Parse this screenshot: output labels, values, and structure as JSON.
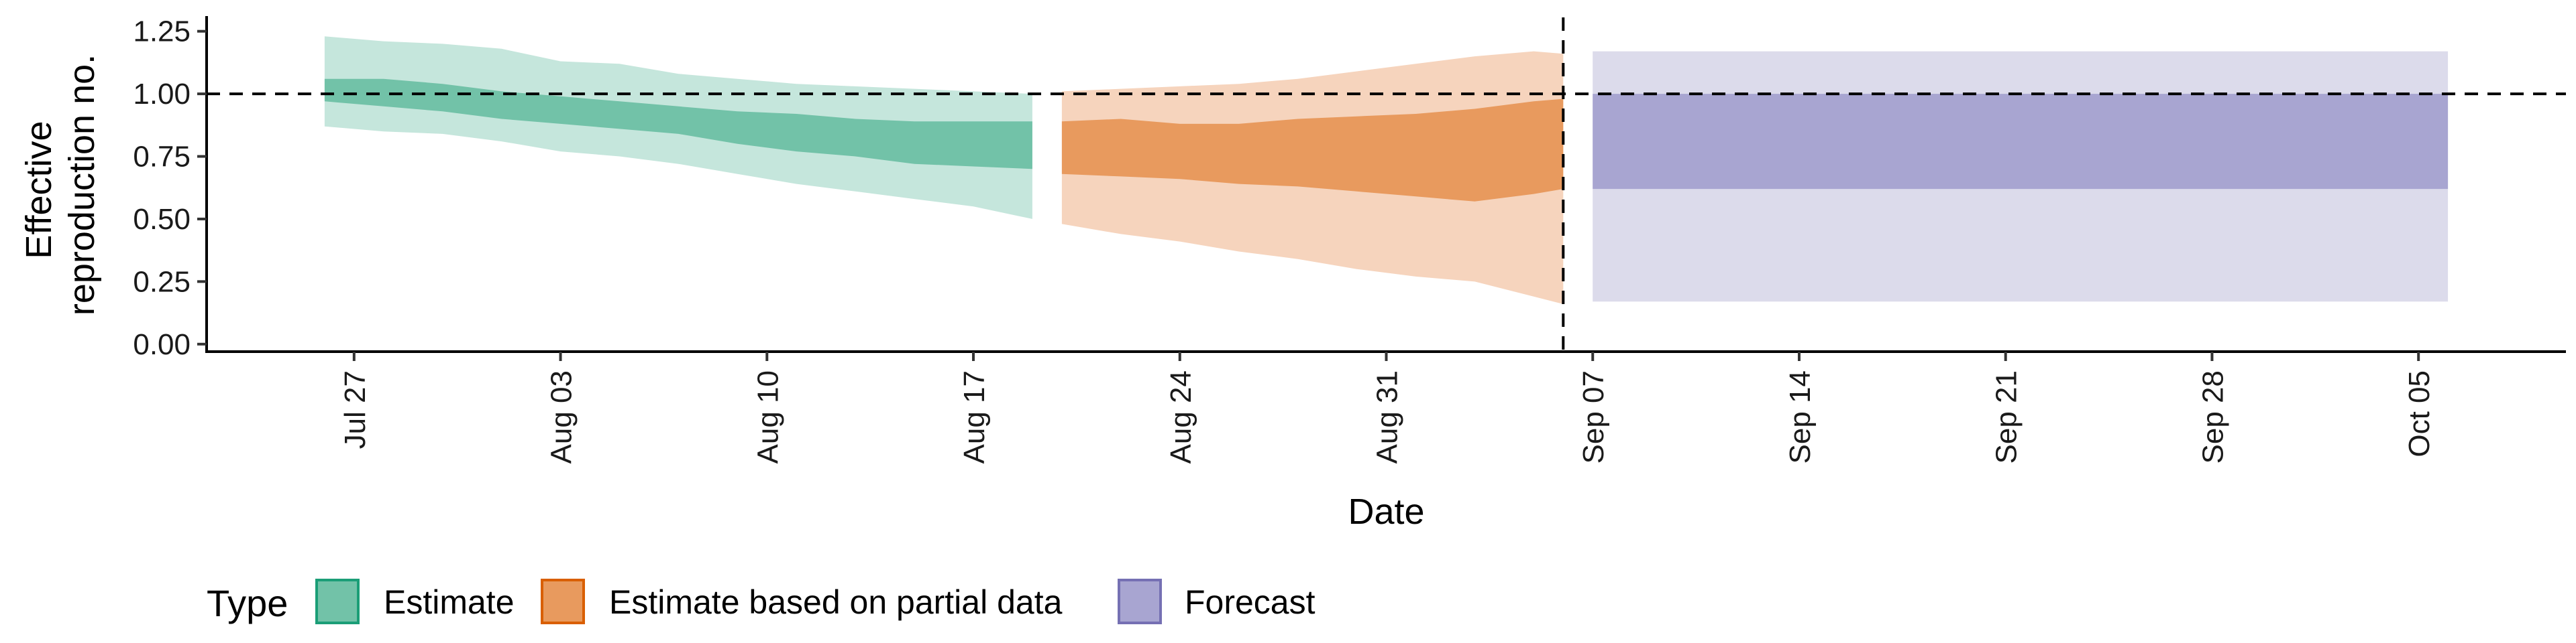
{
  "chart_data": {
    "type": "area",
    "xlabel": "Date",
    "ylabel_lines": [
      "Effective",
      "reproduction no."
    ],
    "x_ticks": [
      "2020-07-27",
      "2020-08-03",
      "2020-08-10",
      "2020-08-17",
      "2020-08-24",
      "2020-08-31",
      "2020-09-07",
      "2020-09-14",
      "2020-09-21",
      "2020-09-28",
      "2020-10-05"
    ],
    "x_tick_labels": [
      "Jul 27",
      "Aug 03",
      "Aug 10",
      "Aug 17",
      "Aug 24",
      "Aug 31",
      "Sep 07",
      "Sep 14",
      "Sep 21",
      "Sep 28",
      "Oct 05"
    ],
    "x_range": [
      "2020-07-22",
      "2020-10-10"
    ],
    "y_ticks": [
      0,
      0.25,
      0.5,
      0.75,
      1.0,
      1.25
    ],
    "y_tick_labels": [
      "0.00",
      "0.25",
      "0.50",
      "0.75",
      "1.00",
      "1.25"
    ],
    "ylim": [
      -0.03,
      1.3
    ],
    "reference_line": {
      "y": 1.0,
      "style": "dashed"
    },
    "vertical_line": {
      "x": "2020-09-06",
      "style": "dashed"
    },
    "legend": {
      "title": "Type",
      "placement": "bottom-left",
      "entries": [
        {
          "label": "Estimate",
          "fill": "#72c2a8",
          "stroke": "#1b9e77"
        },
        {
          "label": "Estimate based on partial data",
          "fill": "#e89a5e",
          "stroke": "#d95f02"
        },
        {
          "label": "Forecast",
          "fill": "#a8a5d1",
          "stroke": "#7570b3"
        }
      ]
    },
    "series": [
      {
        "type_label": "Estimate",
        "outer_fill": "#c5e6dc",
        "inner_fill": "#72c2a8",
        "dates": [
          "2020-07-26",
          "2020-07-28",
          "2020-07-30",
          "2020-08-01",
          "2020-08-03",
          "2020-08-05",
          "2020-08-07",
          "2020-08-09",
          "2020-08-11",
          "2020-08-13",
          "2020-08-15",
          "2020-08-17",
          "2020-08-19"
        ],
        "outer_upper": [
          1.23,
          1.21,
          1.2,
          1.18,
          1.13,
          1.12,
          1.08,
          1.06,
          1.04,
          1.03,
          1.02,
          1.01,
          1.0
        ],
        "inner_upper": [
          1.06,
          1.06,
          1.04,
          1.01,
          0.99,
          0.97,
          0.95,
          0.93,
          0.92,
          0.9,
          0.89,
          0.89,
          0.89
        ],
        "inner_lower": [
          0.97,
          0.95,
          0.93,
          0.9,
          0.88,
          0.86,
          0.84,
          0.8,
          0.77,
          0.75,
          0.72,
          0.71,
          0.7
        ],
        "outer_lower": [
          0.87,
          0.85,
          0.84,
          0.81,
          0.77,
          0.75,
          0.72,
          0.68,
          0.64,
          0.61,
          0.58,
          0.55,
          0.5
        ]
      },
      {
        "type_label": "Estimate based on partial data",
        "outer_fill": "#f6d4bd",
        "inner_fill": "#e89a5e",
        "dates": [
          "2020-08-20",
          "2020-08-22",
          "2020-08-24",
          "2020-08-26",
          "2020-08-28",
          "2020-08-30",
          "2020-09-01",
          "2020-09-03",
          "2020-09-05",
          "2020-09-06"
        ],
        "outer_upper": [
          1.01,
          1.02,
          1.03,
          1.04,
          1.06,
          1.09,
          1.12,
          1.15,
          1.17,
          1.16
        ],
        "inner_upper": [
          0.89,
          0.9,
          0.88,
          0.88,
          0.9,
          0.91,
          0.92,
          0.94,
          0.97,
          0.98
        ],
        "inner_lower": [
          0.68,
          0.67,
          0.66,
          0.64,
          0.63,
          0.61,
          0.59,
          0.57,
          0.6,
          0.62
        ],
        "outer_lower": [
          0.48,
          0.44,
          0.41,
          0.37,
          0.34,
          0.3,
          0.27,
          0.25,
          0.19,
          0.16
        ]
      },
      {
        "type_label": "Forecast",
        "outer_fill": "#dcdbeb",
        "inner_fill": "#a8a5d1",
        "dates": [
          "2020-09-07",
          "2020-10-06"
        ],
        "outer_upper": [
          1.17,
          1.17
        ],
        "inner_upper": [
          1.0,
          1.0
        ],
        "inner_lower": [
          0.62,
          0.62
        ],
        "outer_lower": [
          0.17,
          0.17
        ]
      }
    ]
  }
}
